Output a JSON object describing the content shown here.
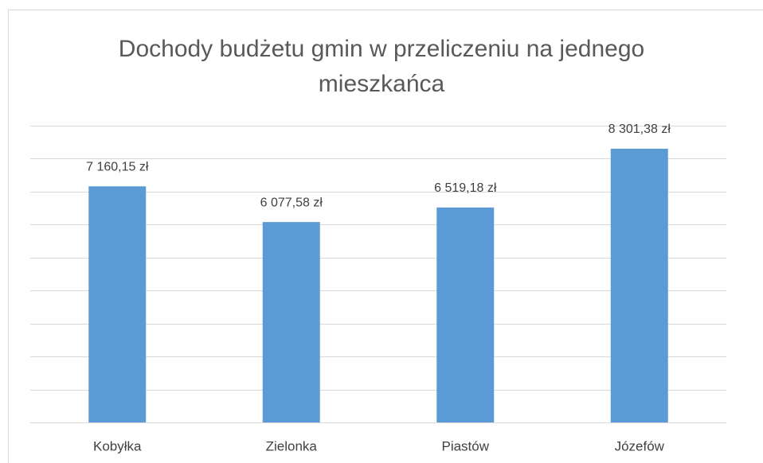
{
  "chart_data": {
    "type": "bar",
    "title": "Dochody budżetu gmin w przeliczeniu na jednego mieszkańca",
    "categories": [
      "Kobyłka",
      "Zielonka",
      "Piastów",
      "Józefów"
    ],
    "values": [
      7160.15,
      6077.58,
      6519.18,
      8301.38
    ],
    "value_labels": [
      "7 160,15 zł",
      "6 077,58 zł",
      "6 519,18 zł",
      "8 301,38 zł"
    ],
    "color": "#5b9bd5",
    "ylim": [
      0,
      9000
    ],
    "yticks": [
      0,
      1000,
      2000,
      3000,
      4000,
      5000,
      6000,
      7000,
      8000,
      9000
    ],
    "grid": true
  }
}
